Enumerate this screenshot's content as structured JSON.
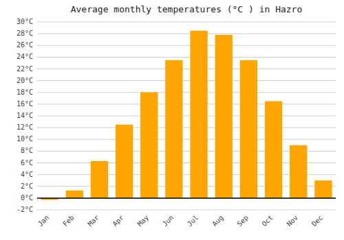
{
  "chart_data": {
    "type": "bar",
    "title": "Average monthly temperatures (°C ) in Hazro",
    "categories": [
      "Jan",
      "Feb",
      "Mar",
      "Apr",
      "May",
      "Jun",
      "Jul",
      "Aug",
      "Sep",
      "Oct",
      "Nov",
      "Dec"
    ],
    "values": [
      -0.3,
      1.3,
      6.3,
      12.5,
      18.0,
      23.5,
      28.5,
      27.8,
      23.5,
      16.5,
      9.0,
      3.0
    ],
    "color": "#FFA500",
    "ylim": [
      -2,
      30
    ],
    "yticks": [
      {
        "value": -2,
        "label": "-2°C"
      },
      {
        "value": 0,
        "label": "0°C"
      },
      {
        "value": 2,
        "label": "2°C"
      },
      {
        "value": 4,
        "label": "4°C"
      },
      {
        "value": 6,
        "label": "6°C"
      },
      {
        "value": 8,
        "label": "8°C"
      },
      {
        "value": 10,
        "label": "10°C"
      },
      {
        "value": 12,
        "label": "12°C"
      },
      {
        "value": 14,
        "label": "14°C"
      },
      {
        "value": 16,
        "label": "16°C"
      },
      {
        "value": 18,
        "label": "18°C"
      },
      {
        "value": 20,
        "label": "20°C"
      },
      {
        "value": 22,
        "label": "22°C"
      },
      {
        "value": 24,
        "label": "24°C"
      },
      {
        "value": 26,
        "label": "26°C"
      },
      {
        "value": 28,
        "label": "28°C"
      },
      {
        "value": 30,
        "label": "30°C"
      }
    ],
    "grid": true
  }
}
